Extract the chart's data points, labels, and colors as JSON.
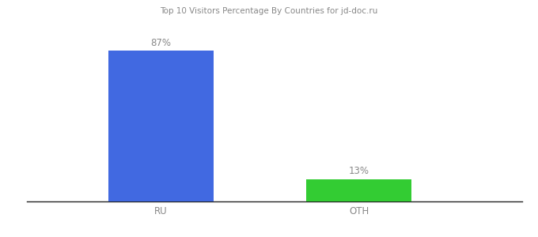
{
  "categories": [
    "RU",
    "OTH"
  ],
  "values": [
    87,
    13
  ],
  "bar_colors": [
    "#4169e1",
    "#33cc33"
  ],
  "labels": [
    "87%",
    "13%"
  ],
  "title": "Top 10 Visitors Percentage By Countries for jd-doc.ru",
  "background_color": "#ffffff",
  "label_fontsize": 8.5,
  "tick_fontsize": 8.5,
  "label_color": "#888888",
  "tick_color": "#888888",
  "ylim": [
    0,
    100
  ],
  "bar_width": 0.18,
  "x_positions": [
    0.28,
    0.62
  ],
  "xlim": [
    0.05,
    0.9
  ]
}
